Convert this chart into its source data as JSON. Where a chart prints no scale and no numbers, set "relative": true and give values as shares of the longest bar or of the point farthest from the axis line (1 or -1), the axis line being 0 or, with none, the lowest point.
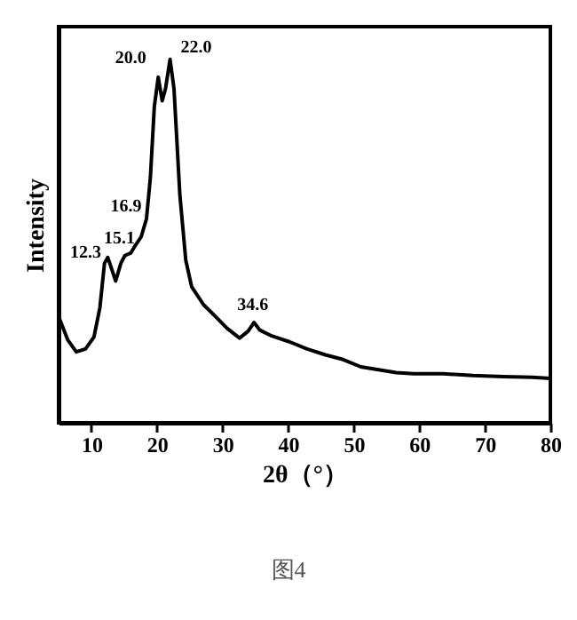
{
  "chart_data": {
    "type": "line",
    "relative": true,
    "xlabel": "2θ（°）",
    "ylabel": "Intensity",
    "xlim": [
      5,
      80
    ],
    "xticks": [
      10,
      20,
      30,
      40,
      50,
      60,
      70,
      80
    ],
    "grid": false,
    "marker": "none",
    "line_style": "solid",
    "x": [
      5,
      6.4,
      7.7,
      9.1,
      10.4,
      11.3,
      12.0,
      12.5,
      13.1,
      13.7,
      14.5,
      15.1,
      16.0,
      16.7,
      17.6,
      18.4,
      19.0,
      19.6,
      20.2,
      20.8,
      21.3,
      22.0,
      22.6,
      23.5,
      24.4,
      25.3,
      27.1,
      28.9,
      30.7,
      32.6,
      33.9,
      34.8,
      35.7,
      37.5,
      40.2,
      42.9,
      45.7,
      48.4,
      51.1,
      53.8,
      56.5,
      59.2,
      63.7,
      68.2,
      72.8,
      77.3,
      80
    ],
    "series": [
      {
        "color": "#000000",
        "values": [
          0.293,
          0.228,
          0.195,
          0.203,
          0.236,
          0.317,
          0.439,
          0.455,
          0.423,
          0.39,
          0.439,
          0.46,
          0.467,
          0.488,
          0.512,
          0.561,
          0.675,
          0.87,
          0.951,
          0.886,
          0.919,
          1.0,
          0.919,
          0.626,
          0.447,
          0.374,
          0.325,
          0.293,
          0.26,
          0.233,
          0.252,
          0.276,
          0.255,
          0.239,
          0.223,
          0.203,
          0.187,
          0.174,
          0.154,
          0.146,
          0.138,
          0.135,
          0.135,
          0.13,
          0.127,
          0.125,
          0.122
        ]
      }
    ],
    "annotations": [
      {
        "text": "12.3",
        "x": 12.3,
        "y": 0.455
      },
      {
        "text": "15.1",
        "x": 15.1,
        "y": 0.46
      },
      {
        "text": "16.9",
        "x": 16.9,
        "y": 0.49
      },
      {
        "text": "20.0",
        "x": 20.0,
        "y": 0.94
      },
      {
        "text": "22.0",
        "x": 22.0,
        "y": 1.0
      },
      {
        "text": "34.6",
        "x": 34.6,
        "y": 0.276
      },
      "图4"
    ]
  }
}
